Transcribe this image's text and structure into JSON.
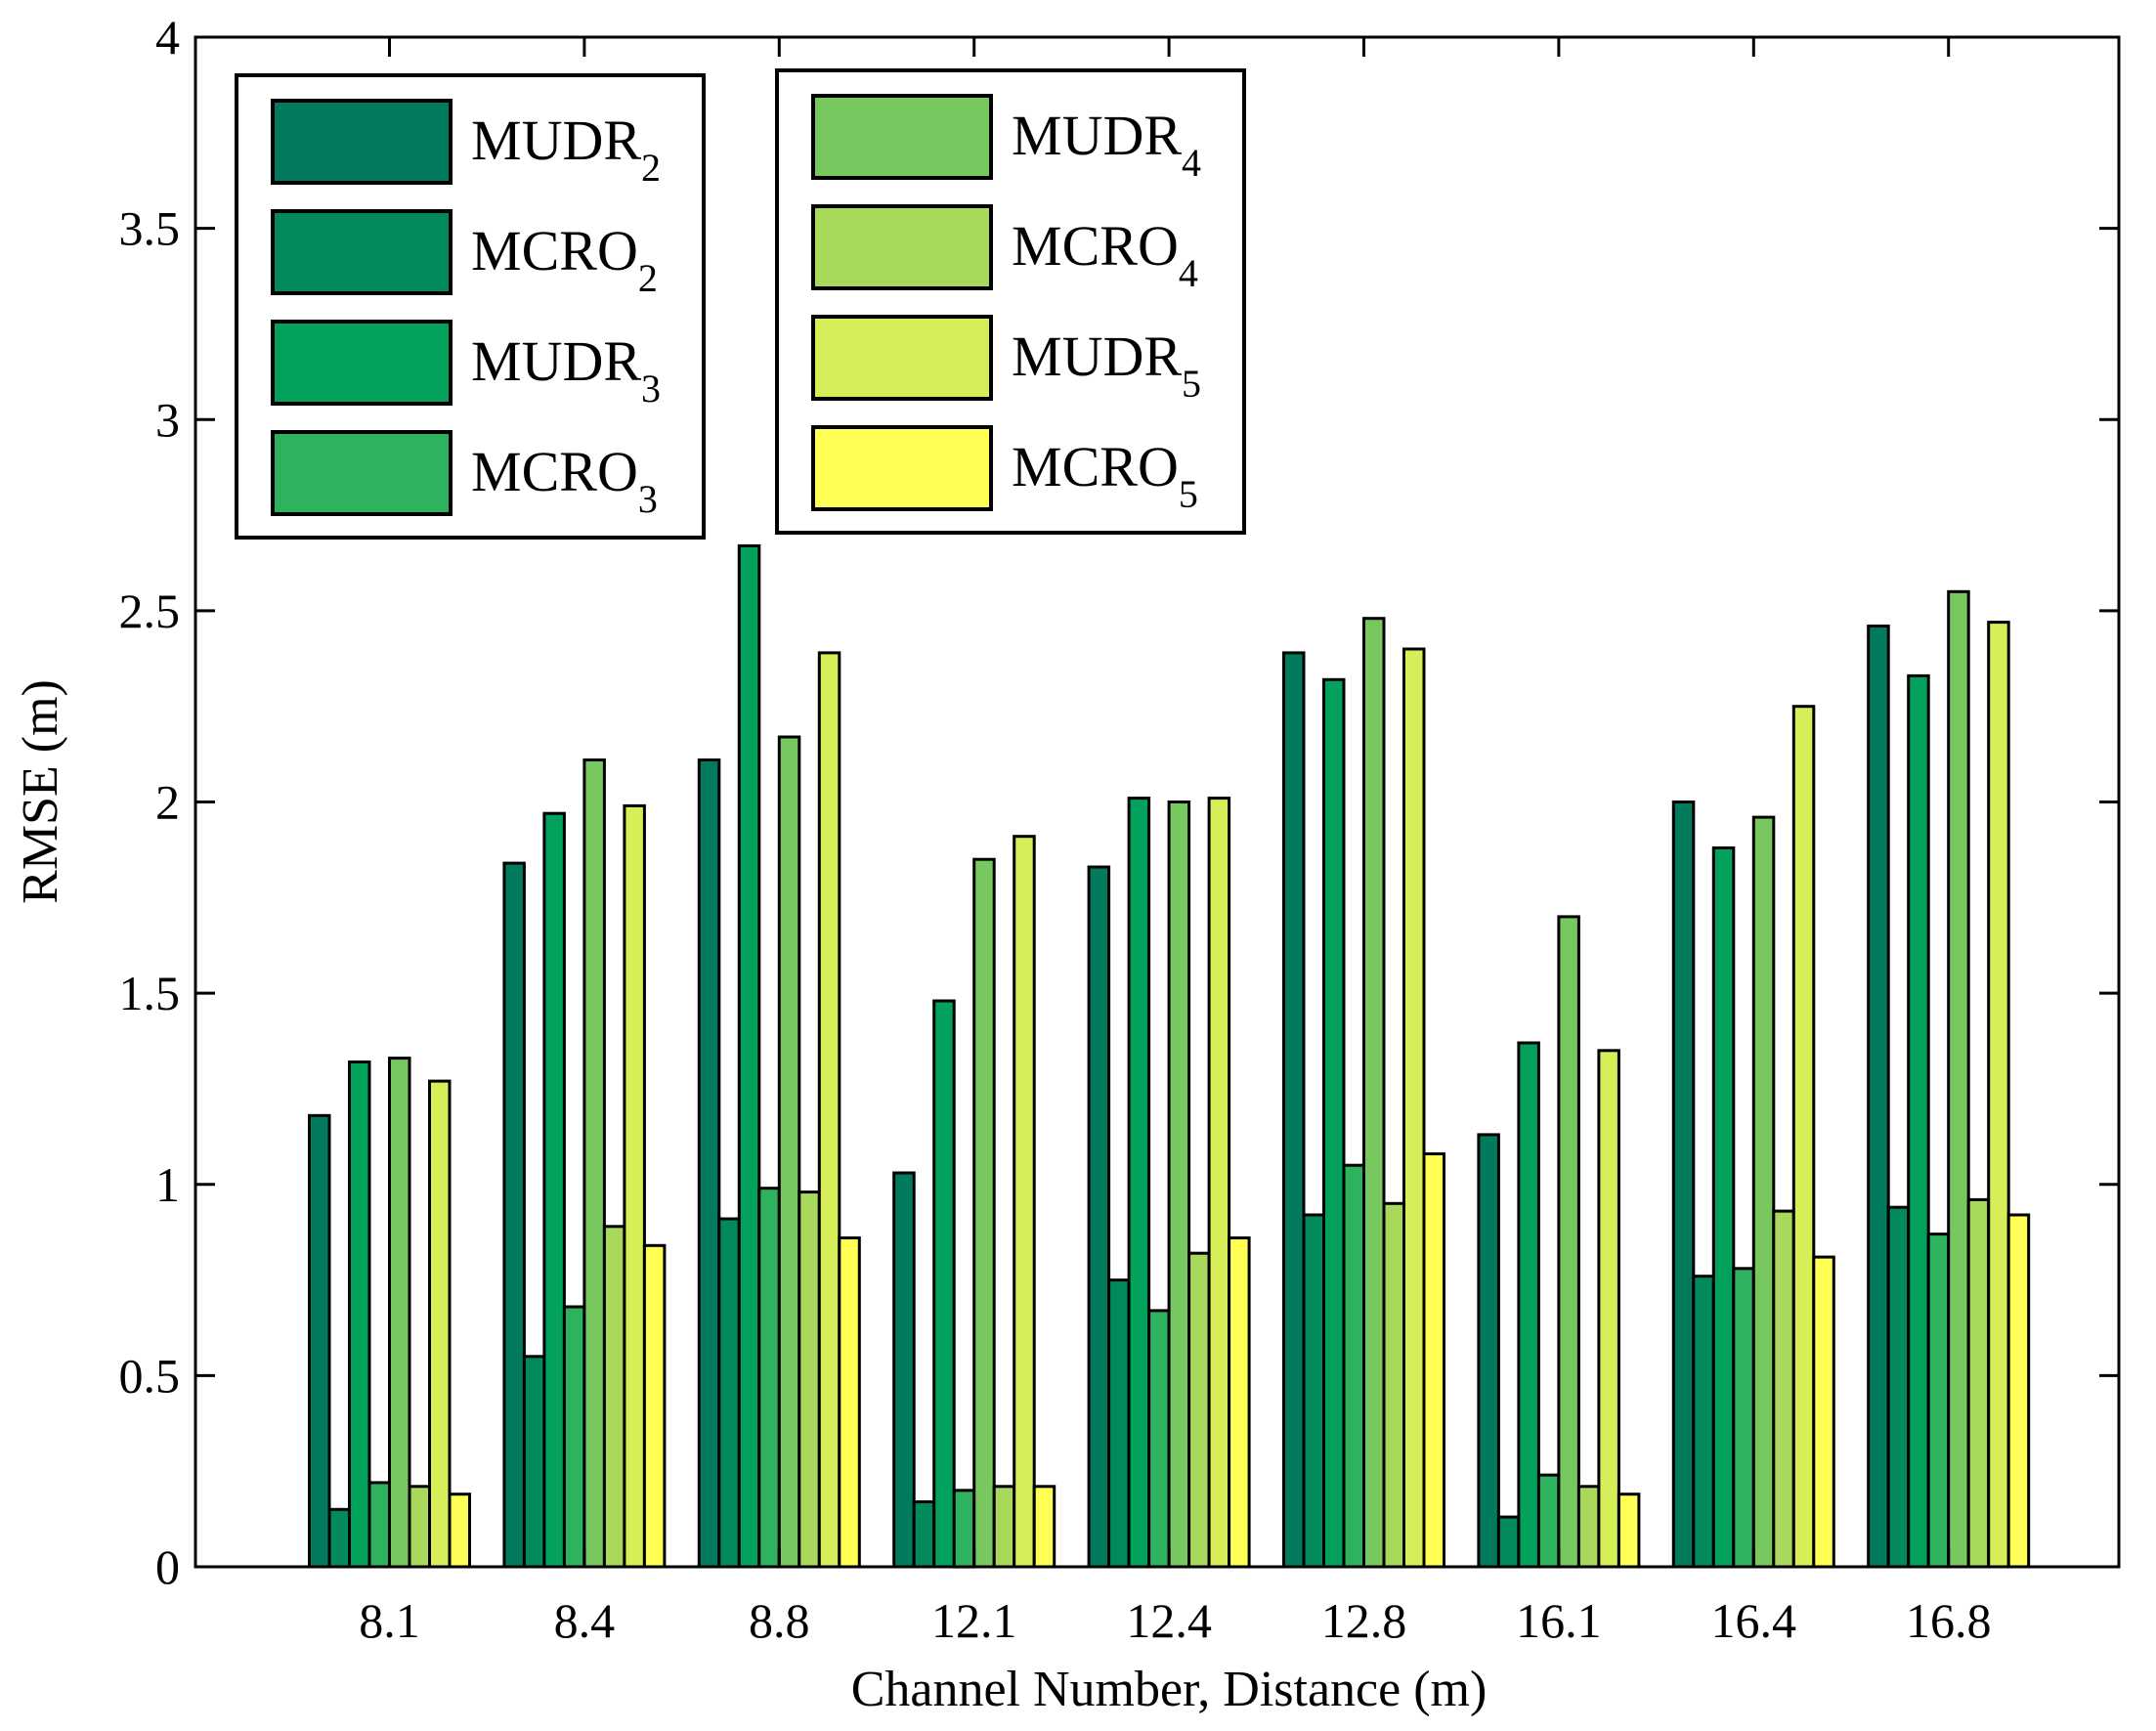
{
  "chart_data": {
    "type": "bar",
    "title": "",
    "xlabel": "Channel Number, Distance (m)",
    "ylabel": "RMSE (m)",
    "ylim": [
      0,
      4
    ],
    "yticks": [
      "0",
      "0.5",
      "1",
      "1.5",
      "2",
      "2.5",
      "3",
      "3.5",
      "4"
    ],
    "categories": [
      "8.1",
      "8.4",
      "8.8",
      "12.1",
      "12.4",
      "12.8",
      "16.1",
      "16.4",
      "16.8"
    ],
    "legend_position": "top-left",
    "series": [
      {
        "name": "MUDR",
        "sub": "2",
        "color": "#027a5e",
        "values": [
          1.18,
          1.84,
          2.11,
          1.03,
          1.83,
          2.39,
          1.13,
          2.0,
          2.46
        ]
      },
      {
        "name": "MCRO",
        "sub": "2",
        "color": "#028a5c",
        "values": [
          0.15,
          0.55,
          0.91,
          0.17,
          0.75,
          0.92,
          0.13,
          0.76,
          0.94
        ]
      },
      {
        "name": "MUDR",
        "sub": "3",
        "color": "#02a15c",
        "values": [
          1.32,
          1.97,
          2.67,
          1.48,
          2.01,
          2.32,
          1.37,
          1.88,
          2.33
        ]
      },
      {
        "name": "MCRO",
        "sub": "3",
        "color": "#2eb25e",
        "values": [
          0.22,
          0.68,
          0.99,
          0.2,
          0.67,
          1.05,
          0.24,
          0.78,
          0.87
        ]
      },
      {
        "name": "MUDR",
        "sub": "4",
        "color": "#78c860",
        "values": [
          1.33,
          2.11,
          2.17,
          1.85,
          2.0,
          2.48,
          1.7,
          1.96,
          2.55
        ]
      },
      {
        "name": "MCRO",
        "sub": "4",
        "color": "#a8d95a",
        "values": [
          0.21,
          0.89,
          0.98,
          0.21,
          0.82,
          0.95,
          0.21,
          0.93,
          0.96
        ]
      },
      {
        "name": "MUDR",
        "sub": "5",
        "color": "#d6ee58",
        "values": [
          1.27,
          1.99,
          2.39,
          1.91,
          2.01,
          2.4,
          1.35,
          2.25,
          2.47
        ]
      },
      {
        "name": "MCRO",
        "sub": "5",
        "color": "#ffff55",
        "values": [
          0.19,
          0.84,
          0.86,
          0.21,
          0.86,
          1.08,
          0.19,
          0.81,
          0.92
        ]
      }
    ]
  }
}
